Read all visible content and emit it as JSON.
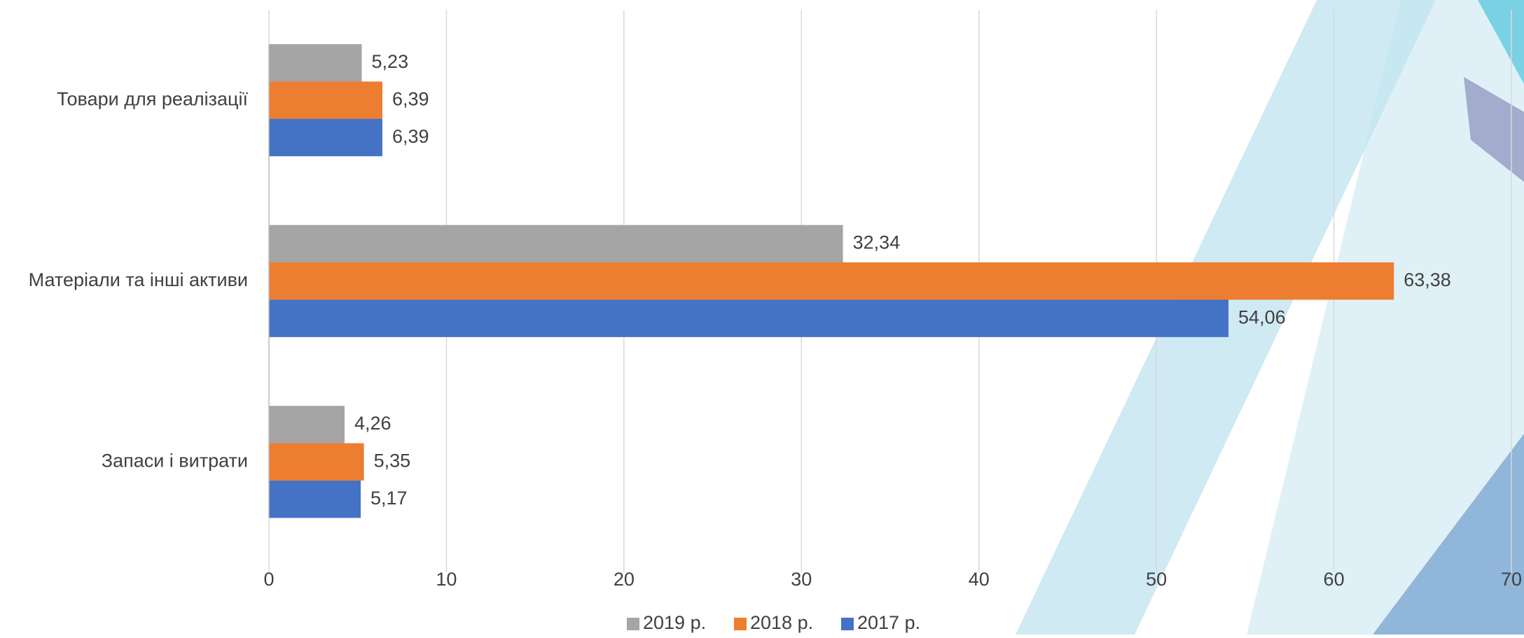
{
  "chart_data": {
    "type": "bar",
    "orientation": "horizontal",
    "categories": [
      "Товари для реалізації",
      "Матеріали та інші активи",
      "Запаси і витрати"
    ],
    "series": [
      {
        "name": "2019 р.",
        "color": "#a5a5a5",
        "values": [
          5.23,
          32.34,
          4.26
        ],
        "value_labels": [
          "5,23",
          "32,34",
          "4,26"
        ]
      },
      {
        "name": "2018 р.",
        "color": "#ed7d31",
        "values": [
          6.39,
          63.38,
          5.35
        ],
        "value_labels": [
          "6,39",
          "63,38",
          "5,35"
        ]
      },
      {
        "name": "2017 р.",
        "color": "#4472c4",
        "values": [
          6.39,
          54.06,
          5.17
        ],
        "value_labels": [
          "6,39",
          "54,06",
          "5,17"
        ]
      }
    ],
    "xlim": [
      0,
      70
    ],
    "xticks": [
      0,
      10,
      20,
      30,
      40,
      50,
      60,
      70
    ],
    "grid": true,
    "legend": "bottom"
  }
}
